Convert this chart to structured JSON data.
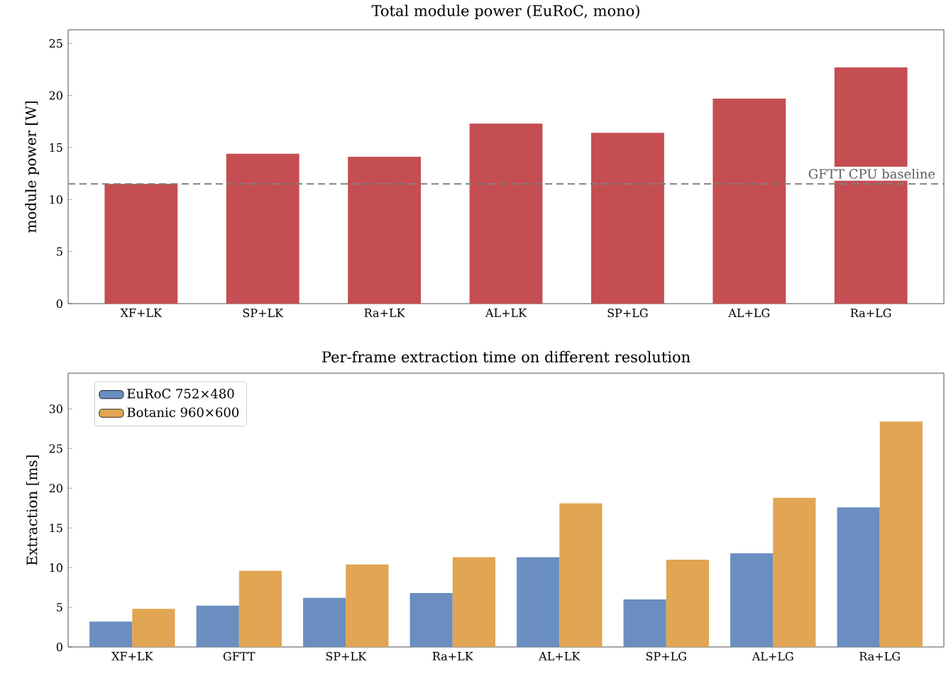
{
  "chart_data": [
    {
      "type": "bar",
      "title": "Total module power (EuRoC, mono)",
      "ylabel": "module power [W]",
      "categories": [
        "XF+LK",
        "SP+LK",
        "Ra+LK",
        "AL+LK",
        "SP+LG",
        "AL+LG",
        "Ra+LG"
      ],
      "series": [
        {
          "color": "#c44e52",
          "values": [
            11.5,
            14.4,
            14.1,
            17.3,
            16.4,
            19.7,
            22.7
          ]
        }
      ],
      "ylim": [
        0,
        26.3
      ],
      "yticks": [
        0,
        5,
        10,
        15,
        20,
        25
      ],
      "grid": false,
      "legend": false,
      "ref_lines": [
        {
          "axis": "y",
          "value": 11.5,
          "label": "GFTT CPU baseline",
          "color": "#808080",
          "line_style": "dashed"
        }
      ]
    },
    {
      "type": "bar",
      "title": "Per-frame extraction time on different resolution",
      "ylabel": "Extraction [ms]",
      "categories": [
        "XF+LK",
        "GFTT",
        "SP+LK",
        "Ra+LK",
        "AL+LK",
        "SP+LG",
        "AL+LG",
        "Ra+LG"
      ],
      "series": [
        {
          "name": "EuRoC 752×480",
          "color": "#6a8ebf",
          "values": [
            3.2,
            5.2,
            6.2,
            6.8,
            11.3,
            6.0,
            11.8,
            17.6
          ]
        },
        {
          "name": "Botanic 960×600",
          "color": "#e1a553",
          "values": [
            4.8,
            9.6,
            10.4,
            11.3,
            18.1,
            11.0,
            18.8,
            28.4
          ]
        }
      ],
      "ylim": [
        0,
        34.5
      ],
      "yticks": [
        0,
        5,
        10,
        15,
        20,
        25,
        30
      ],
      "grid": false,
      "legend": "top left"
    }
  ]
}
